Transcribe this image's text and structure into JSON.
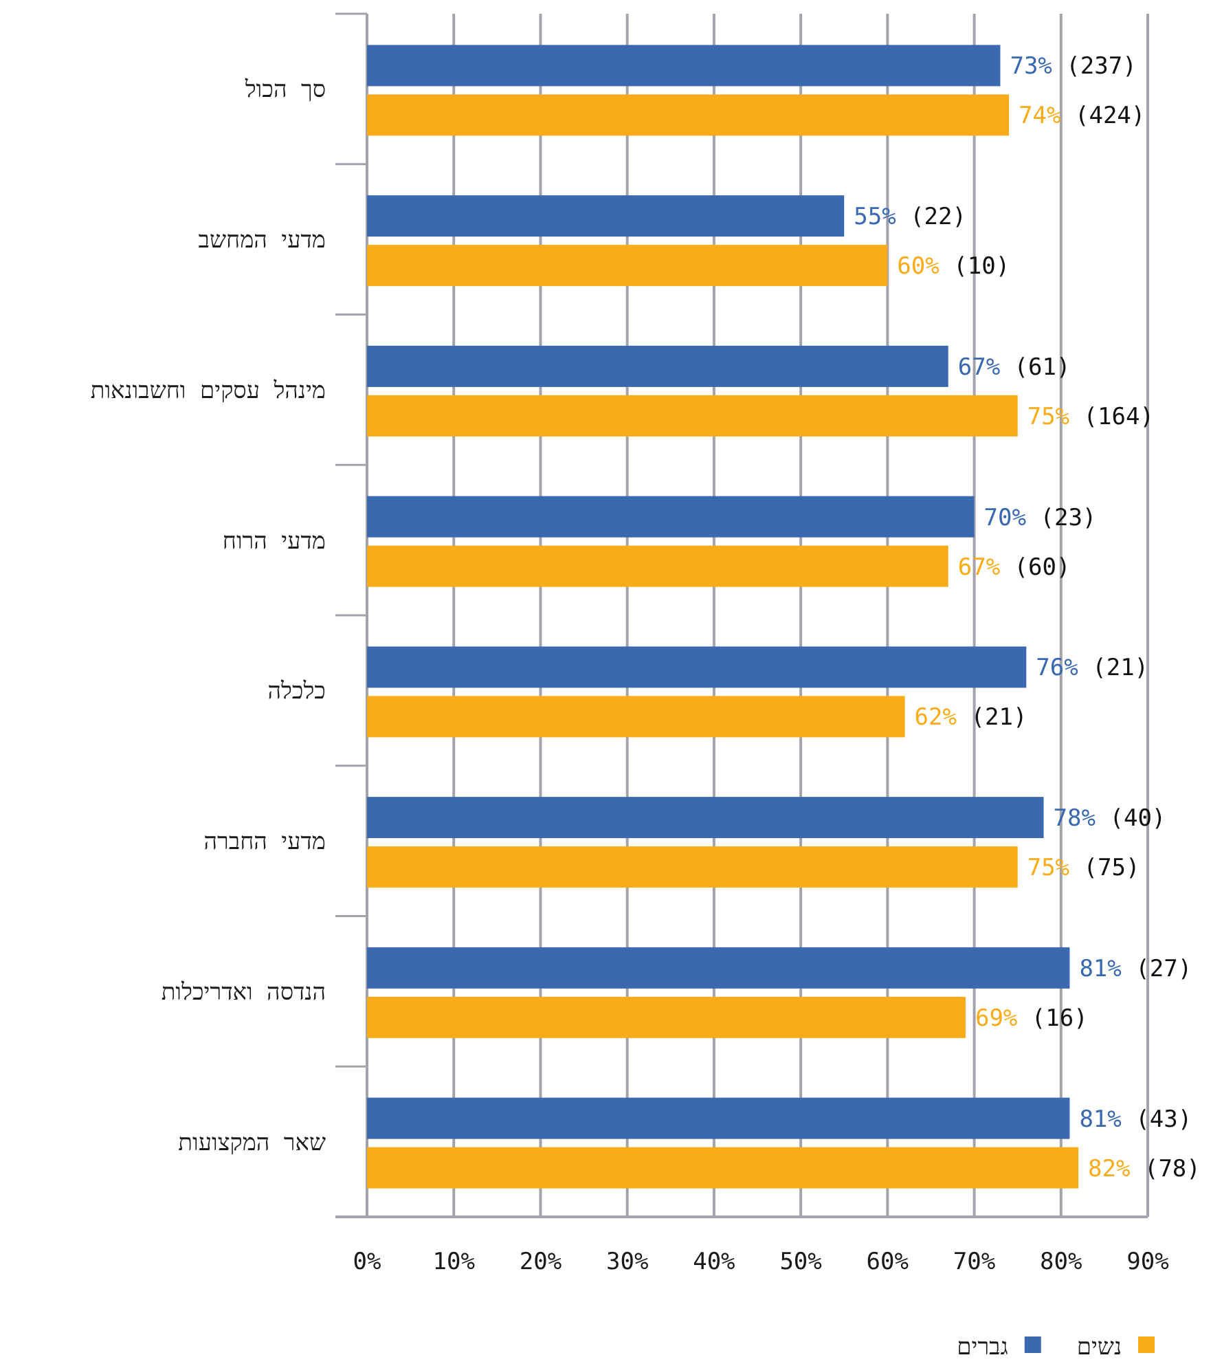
{
  "chart_data": {
    "type": "bar",
    "orientation": "horizontal",
    "categories": [
      "סך הכול",
      "מדעי המחשב",
      "מינהל עסקים וחשבונאות",
      "מדעי הרוח",
      "כלכלה",
      "מדעי החברה",
      "הנדסה ואדריכלות",
      "שאר המקצועות"
    ],
    "series": [
      {
        "name": "גברים",
        "color": "#3a69b0",
        "values": [
          73,
          55,
          67,
          70,
          76,
          78,
          81,
          81
        ],
        "value_labels": [
          "73% (237)",
          "55% (22)",
          "67% (61)",
          "70% (23)",
          "76% (21)",
          "78% (40)",
          "81% (27)",
          "81% (43)"
        ]
      },
      {
        "name": "נשים",
        "color": "#f8ac1a",
        "values": [
          74,
          60,
          75,
          67,
          62,
          75,
          69,
          82
        ],
        "value_labels": [
          "74% (424)",
          "60% (10)",
          "75% (164)",
          "67% (60)",
          "62% (21)",
          "75% (75)",
          "69% (16)",
          "82% (78)"
        ]
      }
    ],
    "xlim": [
      0,
      90
    ],
    "xticks": [
      {
        "value": 0,
        "label": "0%"
      },
      {
        "value": 10,
        "label": "10%"
      },
      {
        "value": 20,
        "label": "20%"
      },
      {
        "value": 30,
        "label": "30%"
      },
      {
        "value": 40,
        "label": "40%"
      },
      {
        "value": 50,
        "label": "50%"
      },
      {
        "value": 60,
        "label": "60%"
      },
      {
        "value": 70,
        "label": "70%"
      },
      {
        "value": 80,
        "label": "80%"
      },
      {
        "value": 90,
        "label": "90%"
      }
    ],
    "grid": "x",
    "legend": "bottom"
  }
}
